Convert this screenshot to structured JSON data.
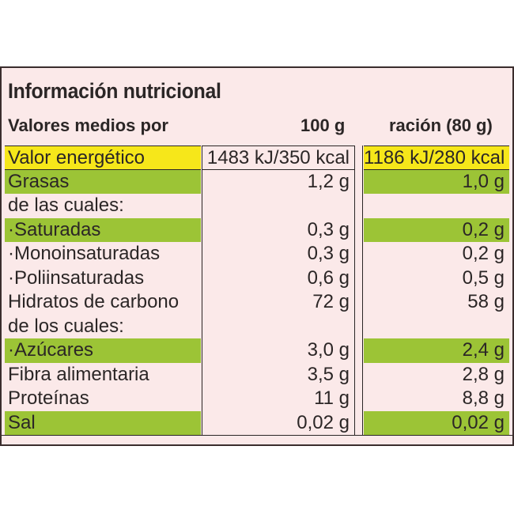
{
  "title": "Información nutricional",
  "header": {
    "label": "Valores medios por",
    "col1": "100 g",
    "col2": "ración (80 g)"
  },
  "rows": [
    {
      "name": "Valor energético",
      "per100": "1483 kJ/350 kcal",
      "serving": "1186 kJ/280 kcal",
      "highlight": "yellow"
    },
    {
      "name": "Grasas",
      "per100": "1,2 g",
      "serving": "1,0 g",
      "highlight": "green"
    },
    {
      "name": " de las cuales:",
      "per100": "",
      "serving": "",
      "highlight": "none"
    },
    {
      "name": "·Saturadas",
      "per100": "0,3 g",
      "serving": "0,2 g",
      "highlight": "green"
    },
    {
      "name": "·Monoinsaturadas",
      "per100": "0,3 g",
      "serving": "0,2 g",
      "highlight": "none"
    },
    {
      "name": "·Poliinsaturadas",
      "per100": "0,6 g",
      "serving": "0,5 g",
      "highlight": "none"
    },
    {
      "name": "Hidratos de carbono",
      "per100": "72 g",
      "serving": "58 g",
      "highlight": "none"
    },
    {
      "name": " de los cuales:",
      "per100": "",
      "serving": "",
      "highlight": "none"
    },
    {
      "name": "·Azúcares",
      "per100": "3,0 g",
      "serving": "2,4 g",
      "highlight": "green"
    },
    {
      "name": "Fibra alimentaria",
      "per100": "3,5 g",
      "serving": "2,8 g",
      "highlight": "none"
    },
    {
      "name": "Proteínas",
      "per100": "11 g",
      "serving": "8,8 g",
      "highlight": "none"
    },
    {
      "name": "Sal",
      "per100": "0,02 g",
      "serving": "0,02 g",
      "highlight": "green"
    }
  ],
  "colors": {
    "background": "#fbe9e9",
    "yellow": "#f6e71a",
    "green": "#9cc436",
    "text": "#2b2626"
  }
}
